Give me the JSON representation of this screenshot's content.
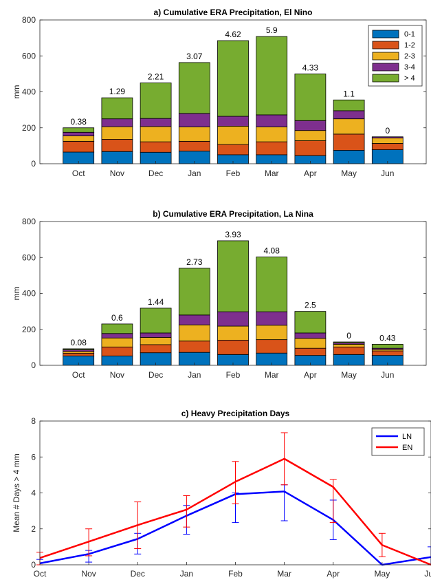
{
  "chart_data": [
    {
      "type": "bar",
      "stacked": true,
      "title": "a) Cumulative ERA Precipitation, El Nino",
      "xlabel": "",
      "ylabel": "mm",
      "ylim": [
        0,
        800
      ],
      "yticks": [
        0,
        200,
        400,
        600,
        800
      ],
      "categories": [
        "Oct",
        "Nov",
        "Dec",
        "Jan",
        "Feb",
        "Mar",
        "Apr",
        "May",
        "Jun"
      ],
      "series": [
        {
          "name": "0-1",
          "color": "#0072BD",
          "values": [
            65,
            68,
            64,
            70,
            50,
            50,
            45,
            75,
            78
          ]
        },
        {
          "name": "1-2",
          "color": "#D95319",
          "values": [
            60,
            68,
            58,
            55,
            57,
            72,
            83,
            90,
            35
          ]
        },
        {
          "name": "2-3",
          "color": "#EDB120",
          "values": [
            30,
            70,
            85,
            80,
            102,
            83,
            57,
            85,
            30
          ]
        },
        {
          "name": "3-4",
          "color": "#7E2F8E",
          "values": [
            20,
            44,
            45,
            75,
            55,
            67,
            55,
            45,
            7
          ]
        },
        {
          "name": "> 4",
          "color": "#77AC30",
          "values": [
            25,
            117,
            198,
            283,
            421,
            436,
            260,
            60,
            0
          ]
        }
      ],
      "bar_labels": [
        "0.38",
        "1.29",
        "2.21",
        "3.07",
        "4.62",
        "5.9",
        "4.33",
        "1.1",
        "0"
      ],
      "legend": "top-right"
    },
    {
      "type": "bar",
      "stacked": true,
      "title": "b) Cumulative ERA Precipitation, La Nina",
      "xlabel": "",
      "ylabel": "mm",
      "ylim": [
        0,
        800
      ],
      "yticks": [
        0,
        200,
        400,
        600,
        800
      ],
      "categories": [
        "Oct",
        "Nov",
        "Dec",
        "Jan",
        "Feb",
        "Mar",
        "Apr",
        "May",
        "Jun"
      ],
      "series": [
        {
          "name": "0-1",
          "color": "#0072BD",
          "values": [
            52,
            52,
            70,
            72,
            60,
            68,
            55,
            60,
            55
          ]
        },
        {
          "name": "1-2",
          "color": "#D95319",
          "values": [
            15,
            50,
            45,
            63,
            80,
            75,
            40,
            42,
            25
          ]
        },
        {
          "name": "2-3",
          "color": "#EDB120",
          "values": [
            10,
            50,
            40,
            90,
            78,
            80,
            55,
            15,
            8
          ]
        },
        {
          "name": "3-4",
          "color": "#7E2F8E",
          "values": [
            10,
            25,
            25,
            55,
            80,
            75,
            30,
            8,
            7
          ]
        },
        {
          "name": "> 4",
          "color": "#77AC30",
          "values": [
            5,
            53,
            138,
            260,
            395,
            305,
            120,
            5,
            22
          ]
        }
      ],
      "bar_labels": [
        "0.08",
        "0.6",
        "1.44",
        "2.73",
        "3.93",
        "4.08",
        "2.5",
        "0",
        "0.43"
      ]
    },
    {
      "type": "line",
      "title": "c) Heavy Precipitation Days",
      "xlabel": "",
      "ylabel": "Mean # Days > 4 mm",
      "ylim": [
        0,
        8
      ],
      "yticks": [
        0,
        2,
        4,
        6,
        8
      ],
      "categories": [
        "Oct",
        "Nov",
        "Dec",
        "Jan",
        "Feb",
        "Mar",
        "Apr",
        "May",
        "Jun"
      ],
      "series": [
        {
          "name": "LN",
          "color": "#0000FF",
          "values": [
            0.08,
            0.6,
            1.44,
            2.73,
            3.93,
            4.08,
            2.5,
            0,
            0.43
          ],
          "err_low": [
            0,
            0.15,
            0.6,
            1.7,
            2.35,
            2.45,
            1.4,
            0,
            0
          ],
          "err_high": [
            0.3,
            0.8,
            1.75,
            3.3,
            4.0,
            4.45,
            3.6,
            0,
            1.0
          ]
        },
        {
          "name": "EN",
          "color": "#FF0000",
          "values": [
            0.38,
            1.29,
            2.21,
            3.07,
            4.62,
            5.9,
            4.33,
            1.1,
            0
          ],
          "err_low": [
            0,
            0.5,
            0.9,
            2.1,
            3.4,
            4.45,
            2.35,
            0.45,
            0
          ],
          "err_high": [
            0.7,
            2.0,
            3.5,
            3.85,
            5.75,
            7.35,
            4.75,
            1.75,
            0
          ]
        }
      ],
      "legend": "top-right"
    }
  ]
}
